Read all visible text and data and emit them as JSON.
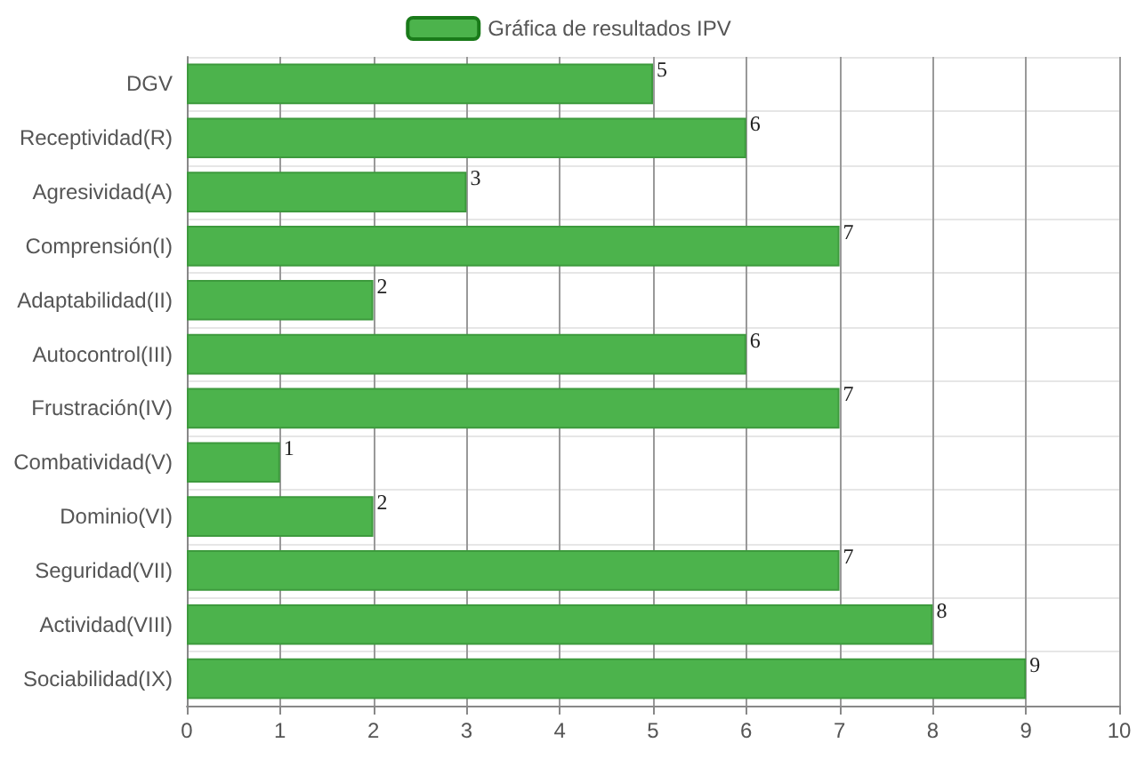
{
  "chart_data": {
    "type": "bar",
    "orientation": "horizontal",
    "categories": [
      "DGV",
      "Receptividad(R)",
      "Agresividad(A)",
      "Comprensión(I)",
      "Adaptabilidad(II)",
      "Autocontrol(III)",
      "Frustración(IV)",
      "Combatividad(V)",
      "Dominio(VI)",
      "Seguridad(VII)",
      "Actividad(VIII)",
      "Sociabilidad(IX)"
    ],
    "series": [
      {
        "name": "Gráfica de resultados IPV",
        "color": "#4cb34c",
        "values": [
          5,
          6,
          3,
          7,
          2,
          6,
          7,
          1,
          2,
          7,
          8,
          9
        ]
      }
    ],
    "xlim": [
      0,
      10
    ],
    "xticks": [
      0,
      1,
      2,
      3,
      4,
      5,
      6,
      7,
      8,
      9,
      10
    ],
    "grid": true,
    "legend": "top",
    "data_labels": true
  }
}
